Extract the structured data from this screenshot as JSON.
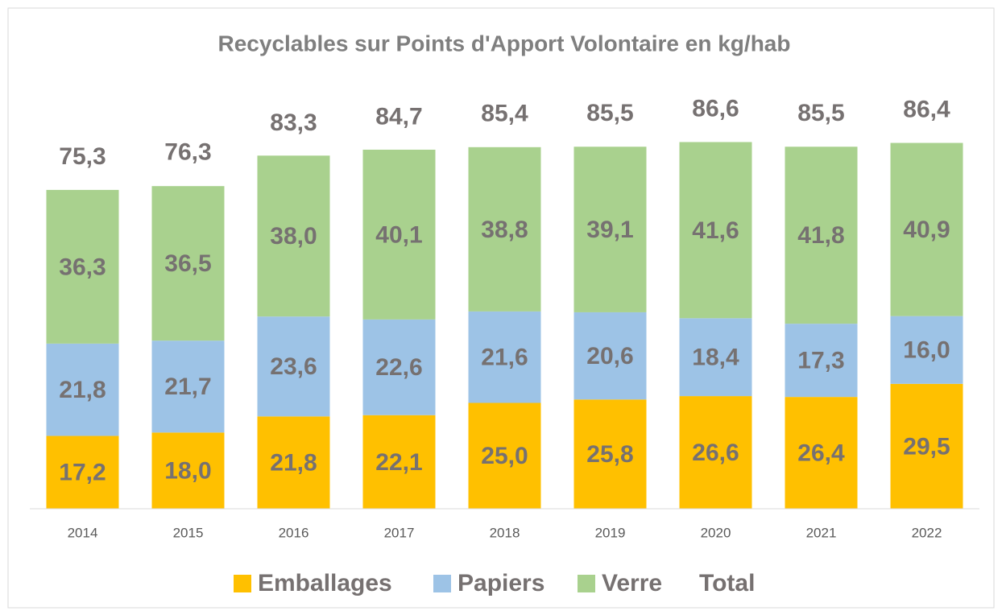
{
  "chart_data": {
    "type": "stacked_bar",
    "title": "Recyclables sur Points d'Apport Volontaire en kg/hab",
    "categories": [
      "2014",
      "2015",
      "2016",
      "2017",
      "2018",
      "2019",
      "2020",
      "2021",
      "2022"
    ],
    "series": [
      {
        "name": "Emballages",
        "color": "#ffc000",
        "values": [
          17.2,
          18.0,
          21.8,
          22.1,
          25.0,
          25.8,
          26.6,
          26.4,
          29.5
        ],
        "value_labels": [
          "17,2",
          "18,0",
          "21,8",
          "22,1",
          "25,0",
          "25,8",
          "26,6",
          "26,4",
          "29,5"
        ]
      },
      {
        "name": "Papiers",
        "color": "#9dc3e6",
        "values": [
          21.8,
          21.7,
          23.6,
          22.6,
          21.6,
          20.6,
          18.4,
          17.3,
          16.0
        ],
        "value_labels": [
          "21,8",
          "21,7",
          "23,6",
          "22,6",
          "21,6",
          "20,6",
          "18,4",
          "17,3",
          "16,0"
        ]
      },
      {
        "name": "Verre",
        "color": "#a9d18e",
        "values": [
          36.3,
          36.5,
          38.0,
          40.1,
          38.8,
          39.1,
          41.6,
          41.8,
          40.9
        ],
        "value_labels": [
          "36,3",
          "36,5",
          "38,0",
          "40,1",
          "38,8",
          "39,1",
          "41,6",
          "41,8",
          "40,9"
        ]
      },
      {
        "name": "Total",
        "values": [
          75.3,
          76.3,
          83.3,
          84.7,
          85.4,
          85.5,
          86.6,
          85.5,
          86.4
        ],
        "value_labels": [
          "75,3",
          "76,3",
          "83,3",
          "84,7",
          "85,4",
          "85,5",
          "86,6",
          "85,5",
          "86,4"
        ]
      }
    ],
    "ylim": [
      0,
      100
    ]
  }
}
